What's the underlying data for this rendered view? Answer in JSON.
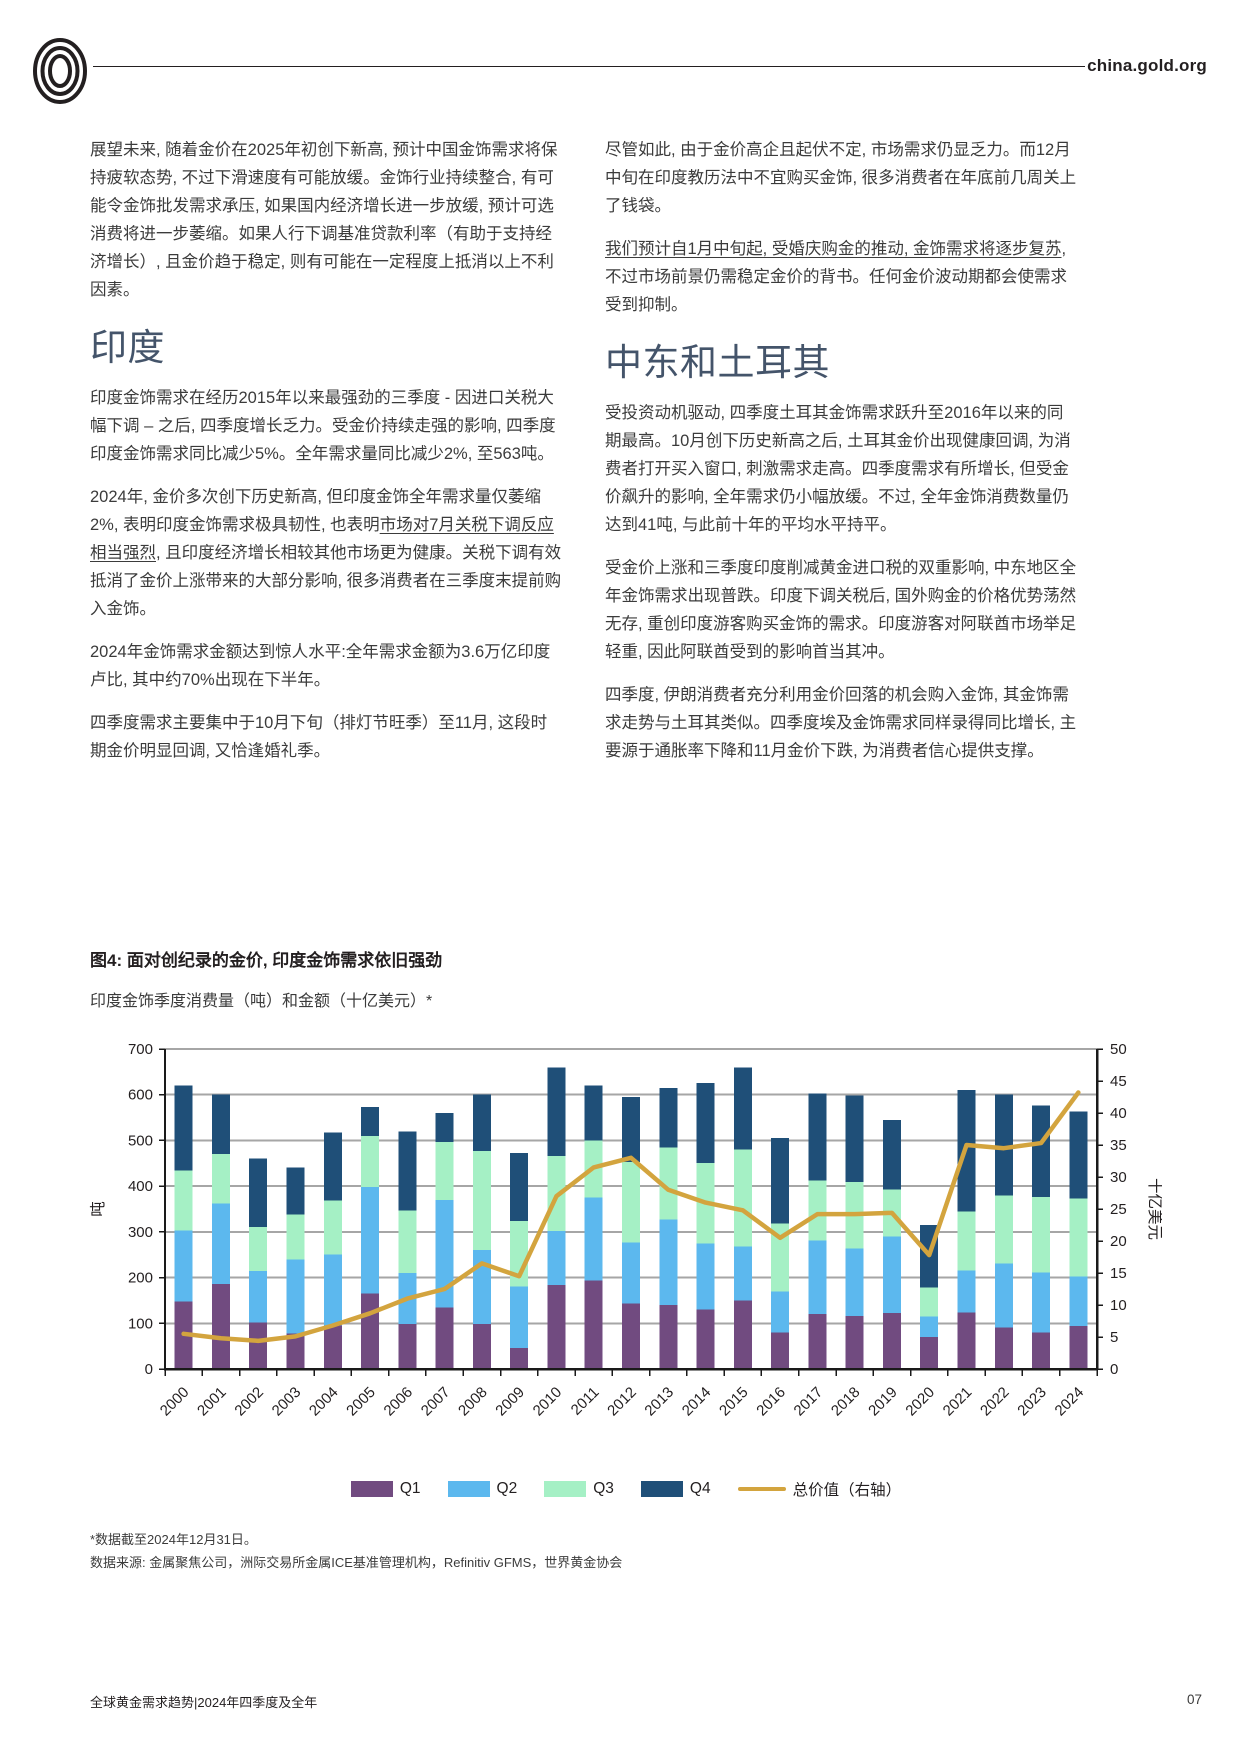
{
  "header": {
    "site": "china.gold.org"
  },
  "left_column": {
    "p1": "展望未来, 随着金价在2025年初创下新高, 预计中国金饰需求将保持疲软态势, 不过下滑速度有可能放缓。金饰行业持续整合, 有可能令金饰批发需求承压, 如果国内经济增长进一步放缓, 预计可选消费将进一步萎缩。如果人行下调基准贷款利率（有助于支持经济增长）, 且金价趋于稳定, 则有可能在一定程度上抵消以上不利因素。",
    "india_heading": "印度",
    "p2": "印度金饰需求在经历2015年以来最强劲的三季度 - 因进口关税大幅下调 – 之后, 四季度增长乏力。受金价持续走强的影响, 四季度印度金饰需求同比减少5%。全年需求量同比减少2%, 至563吨。",
    "p3_pre": "2024年, 金价多次创下历史新高, 但印度金饰全年需求量仅萎缩2%, 表明印度金饰需求极具韧性, 也表明",
    "p3_u": "市场对7月关税下调反应相当强烈",
    "p3_post": ", 且印度经济增长相较其他市场更为健康。关税下调有效抵消了金价上涨带来的大部分影响, 很多消费者在三季度末提前购入金饰。",
    "p4": "2024年金饰需求金额达到惊人水平:全年需求金额为3.6万亿印度卢比, 其中约70%出现在下半年。",
    "p5": "四季度需求主要集中于10月下旬（排灯节旺季）至11月, 这段时期金价明显回调, 又恰逢婚礼季。"
  },
  "right_column": {
    "p1": "尽管如此, 由于金价高企且起伏不定, 市场需求仍显乏力。而12月中旬在印度教历法中不宜购买金饰, 很多消费者在年底前几周关上了钱袋。",
    "p2_u": "我们预计自1月中旬起, 受婚庆购金的推动, 金饰需求将逐步复苏",
    "p2_post": ", 不过市场前景仍需稳定金价的背书。任何金价波动期都会使需求受到抑制。",
    "met_heading": "中东和土耳其",
    "p3": "受投资动机驱动, 四季度土耳其金饰需求跃升至2016年以来的同期最高。10月创下历史新高之后, 土耳其金价出现健康回调, 为消费者打开买入窗口, 刺激需求走高。四季度需求有所增长, 但受金价飙升的影响, 全年需求仍小幅放缓。不过, 全年金饰消费数量仍达到41吨, 与此前十年的平均水平持平。",
    "p4": "受金价上涨和三季度印度削减黄金进口税的双重影响, 中东地区全年金饰需求出现普跌。印度下调关税后, 国外购金的价格优势荡然无存, 重创印度游客购买金饰的需求。印度游客对阿联酋市场举足轻重, 因此阿联酋受到的影响首当其冲。",
    "p5": "四季度, 伊朗消费者充分利用金价回落的机会购入金饰, 其金饰需求走势与土耳其类似。四季度埃及金饰需求同样录得同比增长, 主要源于通胀率下降和11月金价下跌, 为消费者信心提供支撑。"
  },
  "figure": {
    "title": "图4: 面对创纪录的金价, 印度金饰需求依旧强劲",
    "subtitle": "印度金饰季度消费量（吨）和金额（十亿美元）*",
    "footnote1": "*数据截至2024年12月31日。",
    "footnote2": "数据来源: 金属聚焦公司，洲际交易所金属ICE基准管理机构，Refinitiv GFMS，世界黄金协会"
  },
  "chart_data": {
    "type": "bar",
    "subtype": "stacked-bars-with-line",
    "categories": [
      2000,
      2001,
      2002,
      2003,
      2004,
      2005,
      2006,
      2007,
      2008,
      2009,
      2010,
      2011,
      2012,
      2013,
      2014,
      2015,
      2016,
      2017,
      2018,
      2019,
      2020,
      2021,
      2022,
      2023,
      2024
    ],
    "series": [
      {
        "name": "Q1",
        "color": "#714b80",
        "values": [
          148,
          186,
          102,
          78,
          95,
          165,
          98,
          135,
          98,
          46,
          184,
          194,
          143,
          140,
          130,
          150,
          80,
          120,
          116,
          122,
          70,
          124,
          91,
          80,
          94
        ]
      },
      {
        "name": "Q2",
        "color": "#5cb8ee",
        "values": [
          155,
          176,
          112,
          162,
          156,
          233,
          112,
          235,
          162,
          134,
          118,
          181,
          134,
          187,
          145,
          118,
          90,
          161,
          148,
          168,
          45,
          92,
          140,
          131,
          108
        ]
      },
      {
        "name": "Q3",
        "color": "#a5f0c5",
        "values": [
          131,
          108,
          97,
          98,
          118,
          112,
          137,
          127,
          217,
          144,
          164,
          125,
          176,
          157,
          176,
          212,
          148,
          131,
          145,
          103,
          63,
          128,
          149,
          165,
          171
        ]
      },
      {
        "name": "Q4",
        "color": "#1f4f78",
        "values": [
          186,
          130,
          149,
          103,
          148,
          63,
          172,
          63,
          123,
          148,
          194,
          120,
          142,
          131,
          175,
          180,
          187,
          191,
          189,
          152,
          137,
          266,
          220,
          200,
          190
        ]
      }
    ],
    "line_series": {
      "name": "总价值（右轴）",
      "color": "#d3a43e",
      "axis": "right",
      "values": [
        5.5,
        4.8,
        4.4,
        5.1,
        6.8,
        8.7,
        11.0,
        12.5,
        16.5,
        14.5,
        27.0,
        31.5,
        33.0,
        28.0,
        26.0,
        24.8,
        20.5,
        24.2,
        24.2,
        24.4,
        17.8,
        35.0,
        34.5,
        35.3,
        43.2
      ]
    },
    "ylabel_left": "吨",
    "ylabel_right": "十亿美元",
    "ylim_left": [
      0,
      700
    ],
    "ylim_right": [
      0,
      50
    ],
    "yticks_left": [
      0,
      100,
      200,
      300,
      400,
      500,
      600,
      700
    ],
    "yticks_right": [
      0,
      5,
      10,
      15,
      20,
      25,
      30,
      35,
      40,
      45,
      50
    ],
    "grid": "horizontal",
    "legend_position": "bottom",
    "grid_color": "#a6a6a6",
    "axis_color": "#1a1a1a",
    "tick_text_color": "#231f20"
  },
  "footer": {
    "left": "全球黄金需求趋势|2024年四季度及全年",
    "page": "07"
  }
}
